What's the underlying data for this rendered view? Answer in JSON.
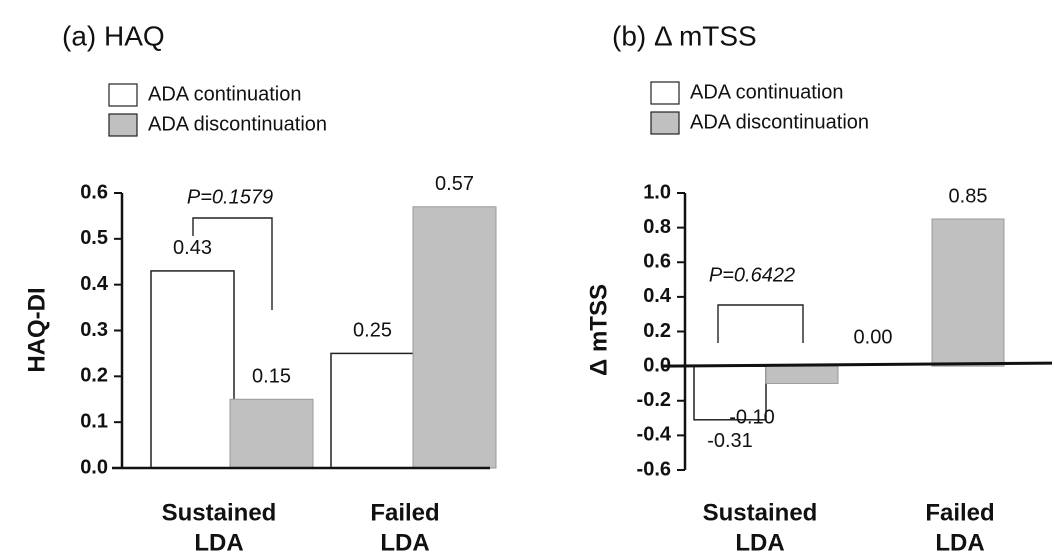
{
  "colors": {
    "continuation": "#ffffff",
    "discontinuation": "#c0c0c0",
    "stroke": "#111111"
  },
  "chart_data": [
    {
      "type": "bar",
      "title": "(a) HAQ",
      "ylabel": "HAQ-DI",
      "ylim": [
        0,
        0.6
      ],
      "yticks": [
        "0.0",
        "0.1",
        "0.2",
        "0.3",
        "0.4",
        "0.5",
        "0.6"
      ],
      "categories": [
        "Sustained LDA",
        "Failed LDA"
      ],
      "category_lines": [
        [
          "Sustained",
          "LDA"
        ],
        [
          "Failed",
          "LDA"
        ]
      ],
      "series": [
        {
          "name": "ADA continuation",
          "values": [
            0.43,
            0.25
          ],
          "labels": [
            "0.43",
            "0.25"
          ]
        },
        {
          "name": "ADA discontinuation",
          "values": [
            0.15,
            0.57
          ],
          "labels": [
            "0.15",
            "0.57"
          ]
        }
      ],
      "annotation": "P=0.1579",
      "legend": "top-left"
    },
    {
      "type": "bar",
      "title": "(b) Δ mTSS",
      "ylabel": "Δ mTSS",
      "ylim": [
        -0.6,
        1.0
      ],
      "yticks": [
        "-0.6",
        "-0.4",
        "-0.2",
        "0.0",
        "0.2",
        "0.4",
        "0.6",
        "0.8",
        "1.0"
      ],
      "categories": [
        "Sustained LDA",
        "Failed LDA"
      ],
      "category_lines": [
        [
          "Sustained",
          "LDA"
        ],
        [
          "Failed",
          "LDA"
        ]
      ],
      "series": [
        {
          "name": "ADA continuation",
          "values": [
            -0.31,
            0.0
          ],
          "labels": [
            "-0.31",
            "0.00"
          ]
        },
        {
          "name": "ADA discontinuation",
          "values": [
            -0.1,
            0.85
          ],
          "labels": [
            "-0.10",
            "0.85"
          ]
        }
      ],
      "annotation": "P=0.6422",
      "legend": "top-left"
    }
  ]
}
